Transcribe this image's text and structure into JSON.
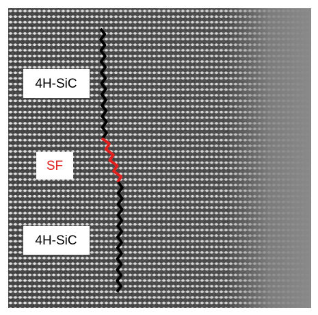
{
  "labels": [
    {
      "text": "4H-SiC"
    },
    {
      "text": "SF"
    },
    {
      "text": "4H-SiC"
    }
  ]
}
